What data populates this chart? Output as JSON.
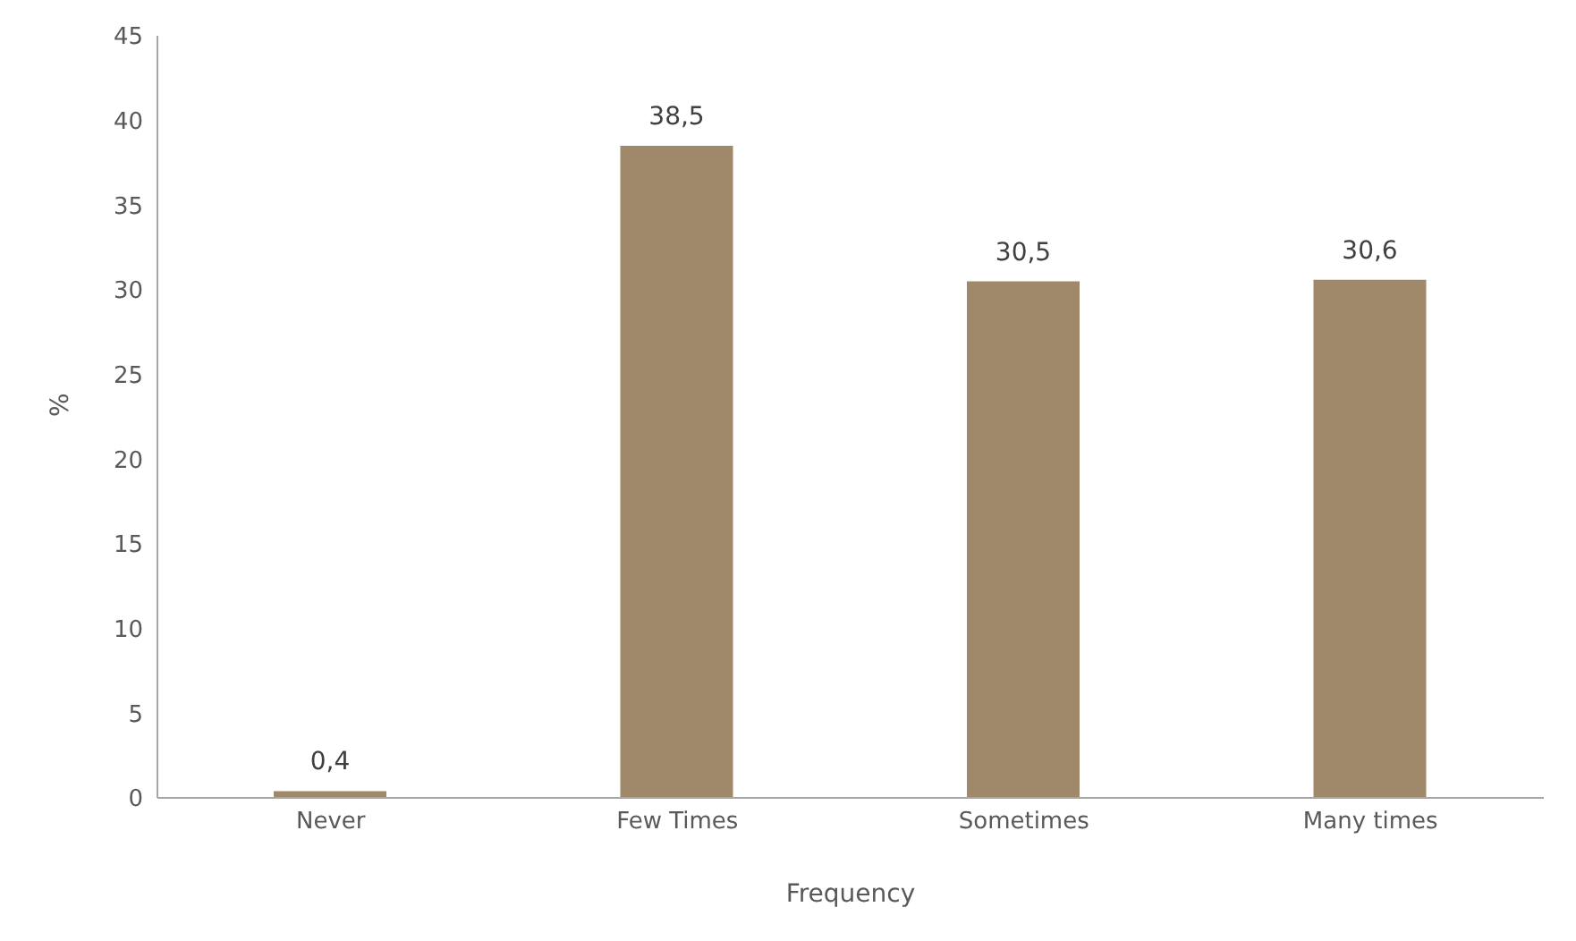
{
  "chart_data": {
    "type": "bar",
    "xlabel": "Frequency",
    "ylabel": "%",
    "categories": [
      "Never",
      "Few Times",
      "Sometimes",
      "Many times"
    ],
    "values": [
      0.4,
      38.5,
      30.5,
      30.6
    ],
    "value_labels": [
      "0,4",
      "38,5",
      "30,5",
      "30,6"
    ],
    "color": "#a0886a",
    "ylim": [
      0,
      45
    ],
    "yticks": [
      0,
      5,
      10,
      15,
      20,
      25,
      30,
      35,
      40,
      45
    ],
    "grid": false,
    "legend": false
  }
}
